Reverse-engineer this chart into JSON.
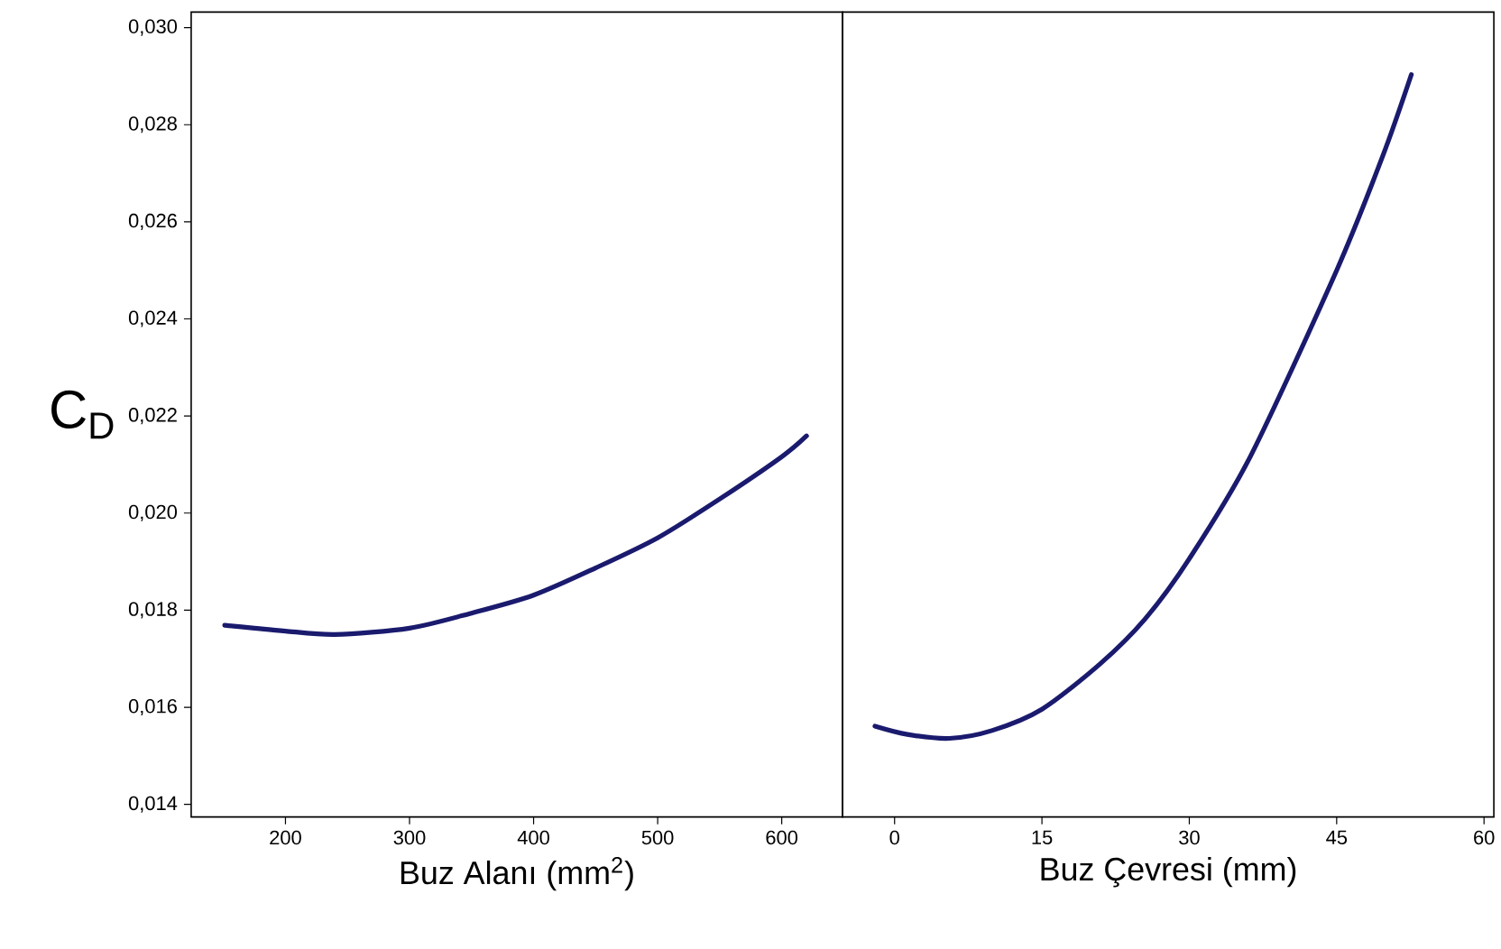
{
  "chart_data": [
    {
      "type": "line",
      "xlabel": "Buz Alanı (mm$^{2}$)",
      "ylabel": "C$_{D}$",
      "xlim": [
        124,
        649
      ],
      "xticks": [
        200,
        300,
        400,
        500,
        600
      ],
      "ylim": [
        0.01374,
        0.03032
      ],
      "yticks": [
        {
          "value": 0.014,
          "label": "0,014"
        },
        {
          "value": 0.016,
          "label": "0,016"
        },
        {
          "value": 0.018,
          "label": "0,018"
        },
        {
          "value": 0.02,
          "label": "0,020"
        },
        {
          "value": 0.022,
          "label": "0,022"
        },
        {
          "value": 0.024,
          "label": "0,024"
        },
        {
          "value": 0.026,
          "label": "0,026"
        },
        {
          "value": 0.028,
          "label": "0,028"
        },
        {
          "value": 0.03,
          "label": "0,030"
        }
      ],
      "series": [
        {
          "color": "#1a1a6e",
          "x": [
            151,
            175,
            200,
            240,
            300,
            350,
            400,
            450,
            500,
            550,
            600,
            620
          ],
          "values": [
            0.01769,
            0.01763,
            0.01757,
            0.0175,
            0.01763,
            0.01794,
            0.01831,
            0.01887,
            0.01949,
            0.02029,
            0.02116,
            0.02159
          ]
        }
      ]
    },
    {
      "type": "line",
      "xlabel": "Buz Çevresi (mm)",
      "tick_labels": "x",
      "xlim": [
        -5.3,
        61
      ],
      "xticks": [
        0,
        15,
        30,
        45,
        60
      ],
      "ylim": [
        0.01374,
        0.03032
      ],
      "series": [
        {
          "color": "#1a1a6e",
          "x": [
            -2.0,
            1.3,
            5.6,
            9.9,
            15,
            20.9,
            25.5,
            30,
            36.2,
            45,
            49.7,
            52.6
          ],
          "values": [
            0.01561,
            0.01544,
            0.01536,
            0.01552,
            0.01596,
            0.01689,
            0.01782,
            0.01906,
            0.02116,
            0.025,
            0.02736,
            0.02903
          ]
        }
      ]
    }
  ]
}
